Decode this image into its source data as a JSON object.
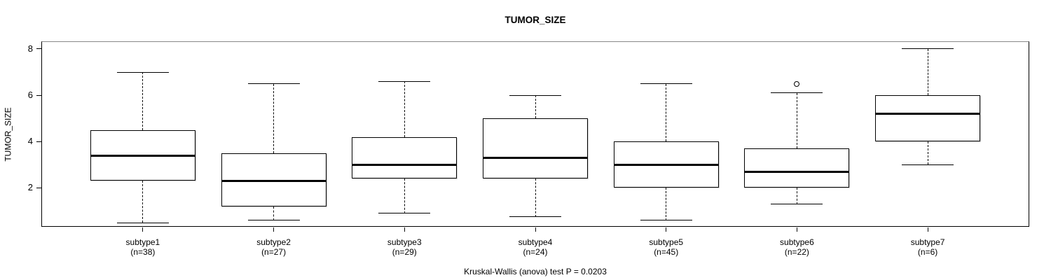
{
  "title": "TUMOR_SIZE",
  "y_axis": {
    "label": "TUMOR_SIZE",
    "ticks": [
      2,
      4,
      6,
      8
    ]
  },
  "footer": "Kruskal-Wallis (anova) test P = 0.0203",
  "colors": {
    "foreground": "#000000",
    "background": "#ffffff",
    "box_fill": "#ffffff"
  },
  "chart_data": {
    "type": "boxplot",
    "title": "TUMOR_SIZE",
    "xlabel": "",
    "ylabel": "TUMOR_SIZE",
    "ylim": [
      0.32,
      8.33
    ],
    "yticks": [
      2,
      4,
      6,
      8
    ],
    "grid": false,
    "legend": false,
    "annotation": "Kruskal-Wallis (anova) test P = 0.0203",
    "p_value": 0.0203,
    "categories": [
      "subtype1",
      "subtype2",
      "subtype3",
      "subtype4",
      "subtype5",
      "subtype6",
      "subtype7"
    ],
    "n_labels": [
      "(n=38)",
      "(n=27)",
      "(n=29)",
      "(n=24)",
      "(n=45)",
      "(n=22)",
      "(n=6)"
    ],
    "series": [
      {
        "name": "subtype1",
        "n": 38,
        "whisker_low": 0.5,
        "q1": 2.3,
        "median": 3.4,
        "q3": 4.5,
        "whisker_high": 7.0,
        "outliers": []
      },
      {
        "name": "subtype2",
        "n": 27,
        "whisker_low": 0.6,
        "q1": 1.2,
        "median": 2.3,
        "q3": 3.5,
        "whisker_high": 6.5,
        "outliers": []
      },
      {
        "name": "subtype3",
        "n": 29,
        "whisker_low": 0.9,
        "q1": 2.4,
        "median": 3.0,
        "q3": 4.2,
        "whisker_high": 6.6,
        "outliers": []
      },
      {
        "name": "subtype4",
        "n": 24,
        "whisker_low": 0.75,
        "q1": 2.4,
        "median": 3.3,
        "q3": 5.0,
        "whisker_high": 6.0,
        "outliers": []
      },
      {
        "name": "subtype5",
        "n": 45,
        "whisker_low": 0.6,
        "q1": 2.0,
        "median": 3.0,
        "q3": 4.0,
        "whisker_high": 6.5,
        "outliers": []
      },
      {
        "name": "subtype6",
        "n": 22,
        "whisker_low": 1.3,
        "q1": 2.0,
        "median": 2.7,
        "q3": 3.7,
        "whisker_high": 6.1,
        "outliers": [
          6.5
        ]
      },
      {
        "name": "subtype7",
        "n": 6,
        "whisker_low": 3.0,
        "q1": 4.0,
        "median": 5.2,
        "q3": 6.0,
        "whisker_high": 8.0,
        "outliers": []
      }
    ]
  }
}
